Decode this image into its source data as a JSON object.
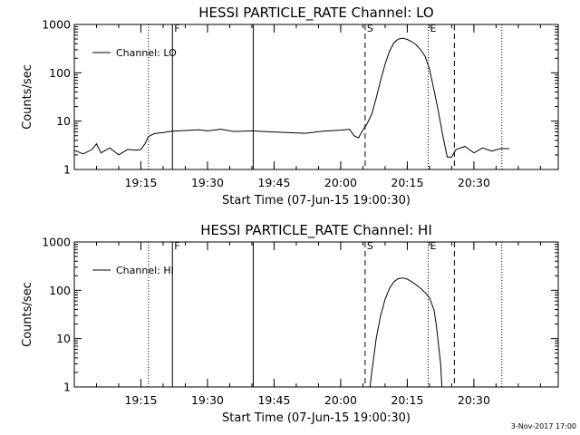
{
  "footer": {
    "timestamp": "3-Nov-2017 17:00"
  },
  "chart_data": [
    {
      "type": "line",
      "title": "HESSI PARTICLE_RATE Channel: LO",
      "xlabel": "Start Time (07-Jun-15 19:00:30)",
      "ylabel": "Counts/sec",
      "yscale": "log",
      "ylim": [
        1,
        1000
      ],
      "xlim_minutes": [
        0,
        109
      ],
      "xticks": [
        {
          "minute": 15,
          "label": "19:15"
        },
        {
          "minute": 30,
          "label": "19:30"
        },
        {
          "minute": 45,
          "label": "19:45"
        },
        {
          "minute": 60,
          "label": "20:00"
        },
        {
          "minute": 75,
          "label": "20:15"
        },
        {
          "minute": 90,
          "label": "20:30"
        }
      ],
      "yticks": [
        {
          "value": 1,
          "label": "1"
        },
        {
          "value": 10,
          "label": "10"
        },
        {
          "value": 100,
          "label": "100"
        },
        {
          "value": 1000,
          "label": "1000"
        }
      ],
      "legend": {
        "label": "Channel: LO",
        "position": "top-left"
      },
      "markers": [
        {
          "minute": 16.7,
          "style": "dotted",
          "label": ""
        },
        {
          "minute": 22.1,
          "style": "solid",
          "label": "F"
        },
        {
          "minute": 40.3,
          "style": "solid",
          "label": ""
        },
        {
          "minute": 65.5,
          "style": "dashed",
          "label": "S"
        },
        {
          "minute": 79.7,
          "style": "dotted",
          "label": "E"
        },
        {
          "minute": 85.6,
          "style": "dashed",
          "label": ""
        },
        {
          "minute": 96.3,
          "style": "dotted",
          "label": ""
        }
      ],
      "series": [
        {
          "x": [
            0,
            2,
            4,
            5,
            6,
            8,
            10,
            12,
            14,
            15,
            16,
            16.7,
            18,
            20,
            22,
            25,
            28,
            30,
            33,
            36,
            40,
            44,
            48,
            52,
            56,
            60,
            62,
            63,
            64,
            65,
            66,
            67,
            68,
            69,
            70,
            71,
            72,
            73,
            74,
            75,
            76,
            77,
            78,
            79,
            80,
            81,
            82,
            83,
            84,
            85,
            86,
            88,
            90,
            92,
            94,
            96,
            98
          ],
          "y": [
            2.5,
            2.1,
            2.6,
            3.4,
            2.2,
            2.8,
            2.0,
            2.6,
            2.5,
            2.6,
            3.5,
            4.8,
            5.5,
            5.8,
            6.2,
            6.4,
            6.6,
            6.3,
            6.8,
            6.1,
            6.3,
            6.0,
            5.8,
            5.6,
            6.2,
            6.5,
            6.8,
            5.0,
            4.5,
            6.5,
            9.0,
            14,
            30,
            70,
            150,
            280,
            420,
            500,
            520,
            490,
            440,
            380,
            300,
            220,
            120,
            45,
            16,
            5,
            1.8,
            1.8,
            2.6,
            3.0,
            2.2,
            2.8,
            2.4,
            2.7,
            2.7
          ]
        }
      ]
    },
    {
      "type": "line",
      "title": "HESSI PARTICLE_RATE Channel: HI",
      "xlabel": "Start Time (07-Jun-15 19:00:30)",
      "ylabel": "Counts/sec",
      "yscale": "log",
      "ylim": [
        1,
        1000
      ],
      "xlim_minutes": [
        0,
        109
      ],
      "xticks": [
        {
          "minute": 15,
          "label": "19:15"
        },
        {
          "minute": 30,
          "label": "19:30"
        },
        {
          "minute": 45,
          "label": "19:45"
        },
        {
          "minute": 60,
          "label": "20:00"
        },
        {
          "minute": 75,
          "label": "20:15"
        },
        {
          "minute": 90,
          "label": "20:30"
        }
      ],
      "yticks": [
        {
          "value": 1,
          "label": "1"
        },
        {
          "value": 10,
          "label": "10"
        },
        {
          "value": 100,
          "label": "100"
        },
        {
          "value": 1000,
          "label": "1000"
        }
      ],
      "legend": {
        "label": "Channel: HI",
        "position": "top-left"
      },
      "markers": [
        {
          "minute": 16.7,
          "style": "dotted",
          "label": ""
        },
        {
          "minute": 22.1,
          "style": "solid",
          "label": "F"
        },
        {
          "minute": 40.3,
          "style": "solid",
          "label": ""
        },
        {
          "minute": 65.5,
          "style": "dashed",
          "label": "S"
        },
        {
          "minute": 79.7,
          "style": "dotted",
          "label": "E"
        },
        {
          "minute": 85.6,
          "style": "dashed",
          "label": ""
        },
        {
          "minute": 96.3,
          "style": "dotted",
          "label": ""
        }
      ],
      "series": [
        {
          "x": [
            66.6,
            67,
            67.5,
            68,
            69,
            70,
            71,
            72,
            73,
            74,
            75,
            76,
            77,
            78,
            79,
            80,
            81,
            81.5,
            82,
            82.5,
            82.8
          ],
          "y": [
            1,
            2,
            4.5,
            10,
            30,
            65,
            110,
            150,
            175,
            180,
            170,
            150,
            130,
            110,
            90,
            70,
            40,
            20,
            8,
            3,
            1
          ]
        }
      ]
    }
  ]
}
